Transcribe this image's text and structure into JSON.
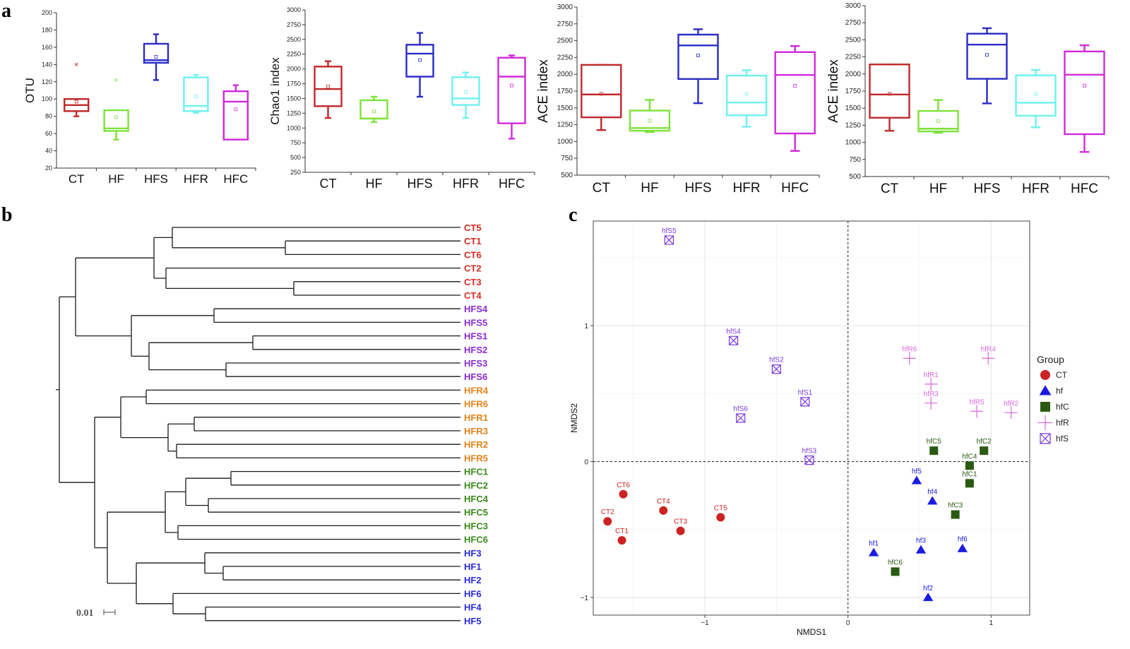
{
  "panel_letters": {
    "a": "a",
    "b": "b",
    "c": "c"
  },
  "chart_data": [
    {
      "id": "otu",
      "type": "box",
      "ylabel": "OTU",
      "ylim": [
        20,
        200
      ],
      "yticks": [
        20,
        40,
        60,
        80,
        100,
        120,
        140,
        160,
        180,
        200
      ],
      "categories": [
        "CT",
        "HF",
        "HFS",
        "HFR",
        "HFC"
      ],
      "colors": [
        "#c0282a",
        "#7ee23a",
        "#2b2bc6",
        "#6ef1ef",
        "#d02ad6"
      ],
      "boxes": [
        {
          "min": 80,
          "q1": 86,
          "median": 93,
          "q3": 100,
          "max": 100,
          "mean": 97,
          "outlier": 140
        },
        {
          "min": 53,
          "q1": 63,
          "median": 66,
          "q3": 87,
          "max": 87,
          "mean": 79,
          "outlier": 122
        },
        {
          "min": 122,
          "q1": 142,
          "median": 145,
          "q3": 164,
          "max": 175,
          "mean": 149,
          "outlier": null
        },
        {
          "min": 84,
          "q1": 86,
          "median": 92,
          "q3": 125,
          "max": 128,
          "mean": 103,
          "outlier": null
        },
        {
          "min": 53,
          "q1": 53,
          "median": 97,
          "q3": 109,
          "max": 116,
          "mean": 88,
          "outlier": null
        }
      ]
    },
    {
      "id": "chao1",
      "type": "box",
      "ylabel": "Chao1 index",
      "ylim": [
        250,
        3000
      ],
      "yticks": [
        250,
        500,
        750,
        1000,
        1250,
        1500,
        1750,
        2000,
        2250,
        2500,
        2750,
        3000
      ],
      "categories": [
        "CT",
        "HF",
        "HFS",
        "HFR",
        "HFC"
      ],
      "colors": [
        "#c0282a",
        "#7ee23a",
        "#2b2bc6",
        "#6ef1ef",
        "#d02ad6"
      ],
      "boxes": [
        {
          "min": 1170,
          "q1": 1370,
          "median": 1660,
          "q3": 2040,
          "max": 2130,
          "mean": 1700,
          "outlier": null
        },
        {
          "min": 1100,
          "q1": 1160,
          "median": 1160,
          "q3": 1470,
          "max": 1530,
          "mean": 1280,
          "outlier": null
        },
        {
          "min": 1530,
          "q1": 1870,
          "median": 2260,
          "q3": 2410,
          "max": 2610,
          "mean": 2150,
          "outlier": null
        },
        {
          "min": 1170,
          "q1": 1390,
          "median": 1500,
          "q3": 1860,
          "max": 1940,
          "mean": 1610,
          "outlier": null
        },
        {
          "min": 820,
          "q1": 1080,
          "median": 1870,
          "q3": 2190,
          "max": 2230,
          "mean": 1720,
          "outlier": null
        }
      ]
    },
    {
      "id": "ace1",
      "type": "box",
      "ylabel": "ACE index",
      "ylim": [
        500,
        3000
      ],
      "yticks": [
        500,
        750,
        1000,
        1250,
        1500,
        1750,
        2000,
        2250,
        2500,
        2750,
        3000
      ],
      "categories": [
        "CT",
        "HF",
        "HFS",
        "HFR",
        "HFC"
      ],
      "colors": [
        "#c0282a",
        "#7ee23a",
        "#2b2bc6",
        "#6ef1ef",
        "#d02ad6"
      ],
      "boxes": [
        {
          "min": 1170,
          "q1": 1360,
          "median": 1700,
          "q3": 2140,
          "max": 2140,
          "mean": 1710,
          "outlier": null
        },
        {
          "min": 1140,
          "q1": 1160,
          "median": 1200,
          "q3": 1460,
          "max": 1620,
          "mean": 1310,
          "outlier": null
        },
        {
          "min": 1570,
          "q1": 1930,
          "median": 2430,
          "q3": 2590,
          "max": 2670,
          "mean": 2280,
          "outlier": null
        },
        {
          "min": 1220,
          "q1": 1390,
          "median": 1580,
          "q3": 1980,
          "max": 2060,
          "mean": 1710,
          "outlier": null
        },
        {
          "min": 860,
          "q1": 1120,
          "median": 1990,
          "q3": 2330,
          "max": 2420,
          "mean": 1830,
          "outlier": null
        }
      ]
    },
    {
      "id": "ace2",
      "type": "box",
      "ylabel": "ACE index",
      "ylim": [
        500,
        3000
      ],
      "yticks": [
        500,
        750,
        1000,
        1250,
        1500,
        1750,
        2000,
        2250,
        2500,
        2750,
        3000
      ],
      "categories": [
        "CT",
        "HF",
        "HFS",
        "HFR",
        "HFC"
      ],
      "colors": [
        "#c0282a",
        "#7ee23a",
        "#2b2bc6",
        "#6ef1ef",
        "#d02ad6"
      ],
      "boxes": [
        {
          "min": 1170,
          "q1": 1360,
          "median": 1700,
          "q3": 2140,
          "max": 2140,
          "mean": 1710,
          "outlier": null
        },
        {
          "min": 1140,
          "q1": 1160,
          "median": 1200,
          "q3": 1460,
          "max": 1620,
          "mean": 1310,
          "outlier": null
        },
        {
          "min": 1570,
          "q1": 1930,
          "median": 2430,
          "q3": 2590,
          "max": 2670,
          "mean": 2280,
          "outlier": null
        },
        {
          "min": 1220,
          "q1": 1390,
          "median": 1580,
          "q3": 1980,
          "max": 2060,
          "mean": 1710,
          "outlier": null
        },
        {
          "min": 860,
          "q1": 1120,
          "median": 1990,
          "q3": 2330,
          "max": 2420,
          "mean": 1830,
          "outlier": null
        }
      ]
    },
    {
      "id": "dendrogram",
      "type": "dendrogram",
      "scale_bar_label": "0.01",
      "leaves": [
        {
          "label": "CT5",
          "color": "#d42a22"
        },
        {
          "label": "CT1",
          "color": "#d42a22"
        },
        {
          "label": "CT6",
          "color": "#d42a22"
        },
        {
          "label": "CT2",
          "color": "#d42a22"
        },
        {
          "label": "CT3",
          "color": "#d42a22"
        },
        {
          "label": "CT4",
          "color": "#d42a22"
        },
        {
          "label": "HFS4",
          "color": "#8a2bd0"
        },
        {
          "label": "HFS5",
          "color": "#8a2bd0"
        },
        {
          "label": "HFS1",
          "color": "#8a2bd0"
        },
        {
          "label": "HFS2",
          "color": "#8a2bd0"
        },
        {
          "label": "HFS3",
          "color": "#8a2bd0"
        },
        {
          "label": "HFS6",
          "color": "#8a2bd0"
        },
        {
          "label": "HFR4",
          "color": "#e0821a"
        },
        {
          "label": "HFR6",
          "color": "#e0821a"
        },
        {
          "label": "HFR1",
          "color": "#e0821a"
        },
        {
          "label": "HFR3",
          "color": "#e0821a"
        },
        {
          "label": "HFR2",
          "color": "#e0821a"
        },
        {
          "label": "HFR5",
          "color": "#e0821a"
        },
        {
          "label": "HFC1",
          "color": "#3a8a1a"
        },
        {
          "label": "HFC2",
          "color": "#3a8a1a"
        },
        {
          "label": "HFC4",
          "color": "#3a8a1a"
        },
        {
          "label": "HFC5",
          "color": "#3a8a1a"
        },
        {
          "label": "HFC3",
          "color": "#3a8a1a"
        },
        {
          "label": "HFC6",
          "color": "#3a8a1a"
        },
        {
          "label": "HF3",
          "color": "#2a2ad6"
        },
        {
          "label": "HF1",
          "color": "#2a2ad6"
        },
        {
          "label": "HF2",
          "color": "#2a2ad6"
        },
        {
          "label": "HF6",
          "color": "#2a2ad6"
        },
        {
          "label": "HF4",
          "color": "#2a2ad6"
        },
        {
          "label": "HF5",
          "color": "#2a2ad6"
        }
      ]
    },
    {
      "id": "nmds",
      "type": "scatter",
      "xlabel": "NMDS1",
      "ylabel": "NMDS2",
      "xlim": [
        -1.78,
        1.27
      ],
      "ylim": [
        -1.13,
        1.77
      ],
      "xticks": [
        -1,
        0,
        1
      ],
      "yticks": [
        -1,
        0,
        1
      ],
      "xtick_labels": [
        "−1",
        "0",
        "1"
      ],
      "ytick_labels": [
        "−1",
        "0",
        "1"
      ],
      "legend_title": "Group",
      "legend": [
        {
          "label": "CT",
          "shape": "circle",
          "color": "#cc2222"
        },
        {
          "label": "hf",
          "shape": "triangle",
          "color": "#1a1ae0"
        },
        {
          "label": "hfC",
          "shape": "square",
          "color": "#2a5a12"
        },
        {
          "label": "hfR",
          "shape": "plus",
          "color": "#d86ad8"
        },
        {
          "label": "hfS",
          "shape": "boxx",
          "color": "#7a3adf"
        }
      ],
      "points": [
        {
          "label": "CT6",
          "group": "CT",
          "x": -1.57,
          "y": -0.24
        },
        {
          "label": "CT4",
          "group": "CT",
          "x": -1.29,
          "y": -0.36
        },
        {
          "label": "CT5",
          "group": "CT",
          "x": -0.89,
          "y": -0.41
        },
        {
          "label": "CT2",
          "group": "CT",
          "x": -1.68,
          "y": -0.44
        },
        {
          "label": "CT3",
          "group": "CT",
          "x": -1.17,
          "y": -0.51
        },
        {
          "label": "CT1",
          "group": "CT",
          "x": -1.58,
          "y": -0.58
        },
        {
          "label": "hf5",
          "group": "hf",
          "x": 0.48,
          "y": -0.14
        },
        {
          "label": "hf4",
          "group": "hf",
          "x": 0.59,
          "y": -0.29
        },
        {
          "label": "hf1",
          "group": "hf",
          "x": 0.18,
          "y": -0.67
        },
        {
          "label": "hf3",
          "group": "hf",
          "x": 0.51,
          "y": -0.65
        },
        {
          "label": "hf6",
          "group": "hf",
          "x": 0.8,
          "y": -0.64
        },
        {
          "label": "hf2",
          "group": "hf",
          "x": 0.56,
          "y": -1.0
        },
        {
          "label": "hfC5",
          "group": "hfC",
          "x": 0.6,
          "y": 0.08
        },
        {
          "label": "hfC2",
          "group": "hfC",
          "x": 0.95,
          "y": 0.08
        },
        {
          "label": "hfC4",
          "group": "hfC",
          "x": 0.85,
          "y": -0.03
        },
        {
          "label": "hfC1",
          "group": "hfC",
          "x": 0.85,
          "y": -0.16
        },
        {
          "label": "hfC3",
          "group": "hfC",
          "x": 0.75,
          "y": -0.39
        },
        {
          "label": "hfC6",
          "group": "hfC",
          "x": 0.33,
          "y": -0.81
        },
        {
          "label": "hfR6",
          "group": "hfR",
          "x": 0.43,
          "y": 0.76
        },
        {
          "label": "hfR4",
          "group": "hfR",
          "x": 0.98,
          "y": 0.76
        },
        {
          "label": "hfR1",
          "group": "hfR",
          "x": 0.58,
          "y": 0.57
        },
        {
          "label": "hfR3",
          "group": "hfR",
          "x": 0.58,
          "y": 0.43
        },
        {
          "label": "hfR5",
          "group": "hfR",
          "x": 0.9,
          "y": 0.37
        },
        {
          "label": "hfR2",
          "group": "hfR",
          "x": 1.14,
          "y": 0.36
        },
        {
          "label": "hfS5",
          "group": "hfS",
          "x": -1.25,
          "y": 1.63
        },
        {
          "label": "hfS4",
          "group": "hfS",
          "x": -0.8,
          "y": 0.89
        },
        {
          "label": "hfS2",
          "group": "hfS",
          "x": -0.5,
          "y": 0.68
        },
        {
          "label": "hfS1",
          "group": "hfS",
          "x": -0.3,
          "y": 0.44
        },
        {
          "label": "hfS6",
          "group": "hfS",
          "x": -0.75,
          "y": 0.32
        },
        {
          "label": "hfS3",
          "group": "hfS",
          "x": -0.27,
          "y": 0.01
        }
      ]
    }
  ]
}
